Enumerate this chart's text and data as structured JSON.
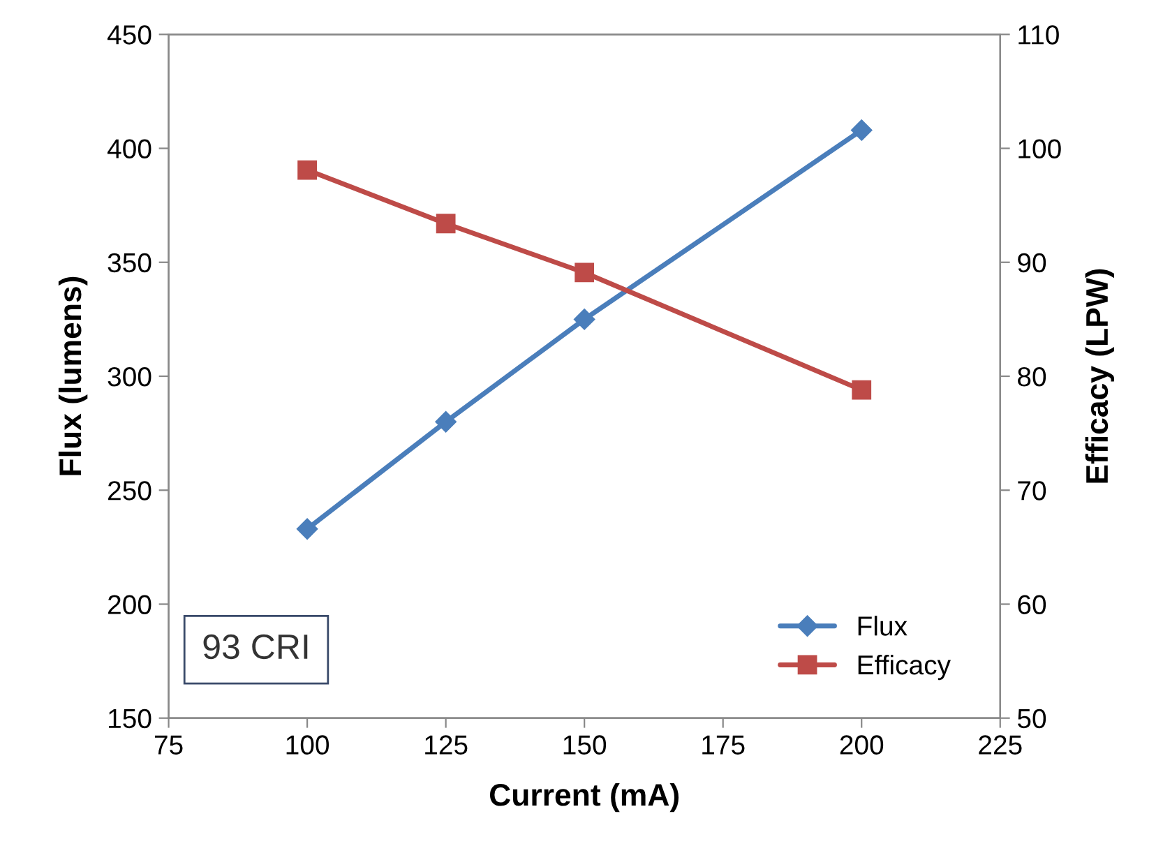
{
  "chart_data": {
    "type": "line",
    "xlabel": "Current (mA)",
    "ylabel": "Flux (lumens)",
    "y2label": "Efficacy (LPW)",
    "x": [
      100,
      125,
      150,
      200
    ],
    "series": [
      {
        "name": "Flux",
        "color": "#4a7ebb",
        "values": [
          233,
          280,
          325,
          408
        ],
        "marker": "diamond"
      },
      {
        "name": "Efficacy",
        "color": "#be4b48",
        "values": [
          98.1,
          93.4,
          89.1,
          78.8
        ],
        "marker": "square",
        "axis": "y2"
      }
    ],
    "xlim": [
      75,
      225
    ],
    "xticks": [
      75,
      100,
      125,
      150,
      175,
      200,
      225
    ],
    "ylim": [
      150,
      450
    ],
    "yticks": [
      150,
      200,
      250,
      300,
      350,
      400,
      450
    ],
    "y2lim": [
      50,
      110
    ],
    "y2ticks": [
      50,
      60,
      70,
      80,
      90,
      100,
      110
    ],
    "annotations": [
      "93 CRI"
    ],
    "legend": "bottom right",
    "grid": false
  }
}
